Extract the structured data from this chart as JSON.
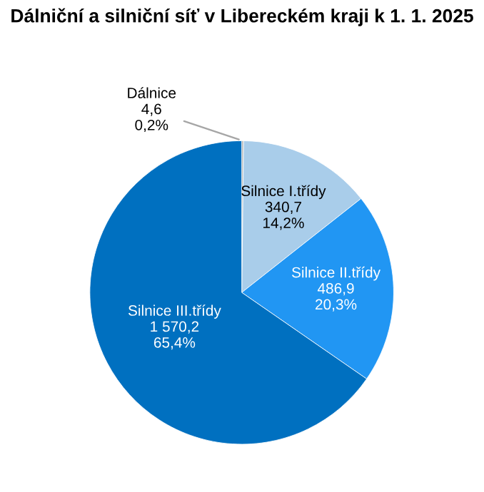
{
  "chart_data": {
    "type": "pie",
    "title": "Dálniční a silniční síť v Libereckém kraji k 1. 1. 2025",
    "categories": [
      "Dálnice",
      "Silnice I.třídy",
      "Silnice II.třídy",
      "Silnice III.třídy"
    ],
    "values": [
      4.6,
      340.7,
      486.9,
      1570.2
    ],
    "value_labels": [
      "4,6\n0,2%",
      "340,7\n14,2%",
      "486,9\n20,3%",
      "1 570,2\n65,4%"
    ],
    "colors": [
      "#a6a6a6",
      "#a9cdea",
      "#2196f3",
      "#0070c0"
    ],
    "legend": false
  }
}
